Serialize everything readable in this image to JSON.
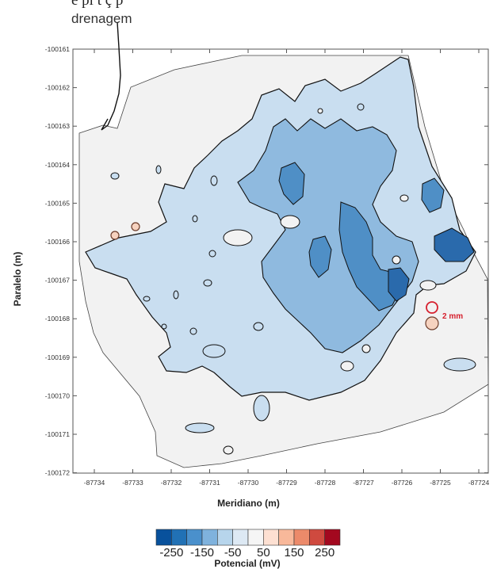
{
  "header_text_cut": "e pl   t  ç                 p",
  "annotation_drainage": "drenagem",
  "y_axis": {
    "title": "Paralelo (m)",
    "ticks": [
      "-100161",
      "-100162",
      "-100163",
      "-100164",
      "-100165",
      "-100166",
      "-100167",
      "-100168",
      "-100169",
      "-100170",
      "-100171",
      "-100172"
    ]
  },
  "x_axis": {
    "title": "Meridiano (m)",
    "ticks": [
      "-87734",
      "-87733",
      "-87732",
      "-87731",
      "-87730",
      "-87729",
      "-87728",
      "-87727",
      "-87726",
      "-87725",
      "-87724"
    ]
  },
  "marker_label": "2 mm",
  "colorbar": {
    "title": "Potencial (mV)",
    "tick_labels": [
      "-250",
      "-150",
      "-50",
      "50",
      "150",
      "250"
    ],
    "colors": [
      "#08519c",
      "#2171b5",
      "#4a90cc",
      "#7fb2dd",
      "#b7d5ec",
      "#dde9f4",
      "#f5f5f5",
      "#fde0d2",
      "#f8b89a",
      "#ec8a6a",
      "#cf4a3f",
      "#a3081f"
    ]
  },
  "colors": {
    "background_fill": "#f2f2f2",
    "light_blue": "#c9def0",
    "mid_blue": "#8fbadf",
    "dark_blue": "#4f8fc6",
    "darkest_blue": "#2a6aac",
    "contour": "#111111",
    "marker_red": "#d6202e"
  }
}
